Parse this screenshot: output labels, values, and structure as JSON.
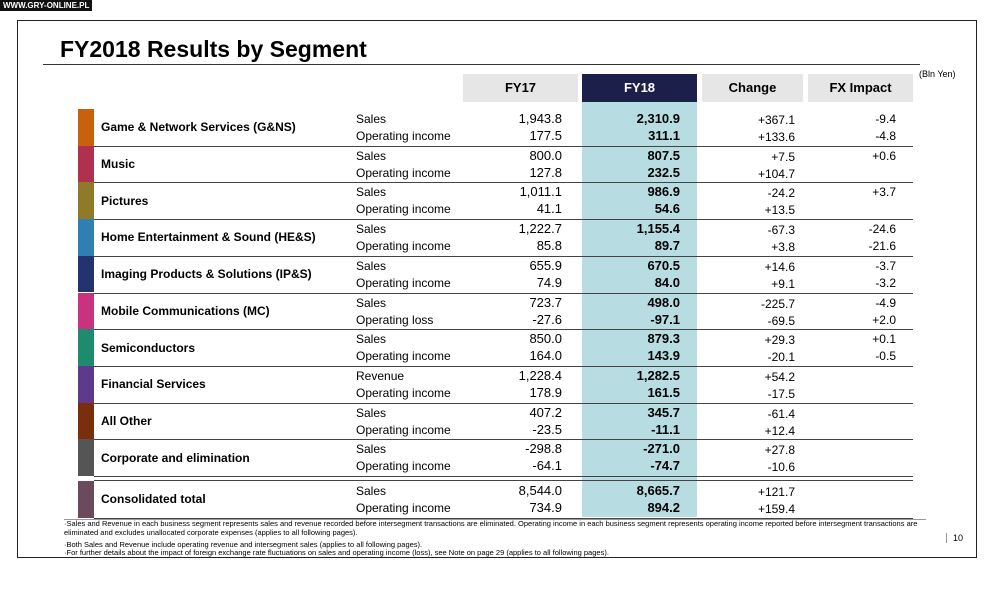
{
  "watermark": "WWW.GRY-ONLINE.PL",
  "header": {
    "title": "FY2018 Results by Segment",
    "unit": "(Bln Yen)"
  },
  "table": {
    "columns": [
      "FY17",
      "FY18",
      "Change",
      "FX Impact"
    ],
    "rows": [
      {
        "segment": "Game & Network Services (G&NS)",
        "color": "#c8600c",
        "items": [
          {
            "label": "Sales",
            "fy17": "1,943.8",
            "fy18": "2,310.9",
            "change": "+367.1",
            "fx": "-9.4"
          },
          {
            "label": "Operating income",
            "fy17": "177.5",
            "fy18": "311.1",
            "change": "+133.6",
            "fx": "-4.8"
          }
        ]
      },
      {
        "segment": "Music",
        "color": "#b03050",
        "items": [
          {
            "label": "Sales",
            "fy17": "800.0",
            "fy18": "807.5",
            "change": "+7.5",
            "fx": "+0.6"
          },
          {
            "label": "Operating income",
            "fy17": "127.8",
            "fy18": "232.5",
            "change": "+104.7"
          }
        ]
      },
      {
        "segment": "Pictures",
        "color": "#8f7a2a",
        "items": [
          {
            "label": "Sales",
            "fy17": "1,011.1",
            "fy18": "986.9",
            "change": "-24.2",
            "fx": "+3.7"
          },
          {
            "label": "Operating income",
            "fy17": "41.1",
            "fy18": "54.6",
            "change": "+13.5"
          }
        ]
      },
      {
        "segment": "Home Entertainment & Sound (HE&S)",
        "color": "#2f7fb0",
        "items": [
          {
            "label": "Sales",
            "fy17": "1,222.7",
            "fy18": "1,155.4",
            "change": "-67.3",
            "fx": "-24.6"
          },
          {
            "label": "Operating income",
            "fy17": "85.8",
            "fy18": "89.7",
            "change": "+3.8",
            "fx": "-21.6"
          }
        ]
      },
      {
        "segment": "Imaging Products & Solutions (IP&S)",
        "color": "#23336e",
        "items": [
          {
            "label": "Sales",
            "fy17": "655.9",
            "fy18": "670.5",
            "change": "+14.6",
            "fx": "-3.7"
          },
          {
            "label": "Operating income",
            "fy17": "74.9",
            "fy18": "84.0",
            "change": "+9.1",
            "fx": "-3.2"
          }
        ]
      },
      {
        "segment": "Mobile Communications (MC)",
        "color": "#c8337f",
        "items": [
          {
            "label": "Sales",
            "fy17": "723.7",
            "fy18": "498.0",
            "change": "-225.7",
            "fx": "-4.9"
          },
          {
            "label": "Operating loss",
            "fy17": "-27.6",
            "fy18": "-97.1",
            "change": "-69.5",
            "fx": "+2.0"
          }
        ]
      },
      {
        "segment": "Semiconductors",
        "color": "#1e8a6e",
        "items": [
          {
            "label": "Sales",
            "fy17": "850.0",
            "fy18": "879.3",
            "change": "+29.3",
            "fx": "+0.1"
          },
          {
            "label": "Operating income",
            "fy17": "164.0",
            "fy18": "143.9",
            "change": "-20.1",
            "fx": "-0.5"
          }
        ]
      },
      {
        "segment": "Financial Services",
        "color": "#5e3a8c",
        "items": [
          {
            "label": "Revenue",
            "fy17": "1,228.4",
            "fy18": "1,282.5",
            "change": "+54.2"
          },
          {
            "label": "Operating income",
            "fy17": "178.9",
            "fy18": "161.5",
            "change": "-17.5"
          }
        ]
      },
      {
        "segment": "All Other",
        "color": "#7a2e0e",
        "items": [
          {
            "label": "Sales",
            "fy17": "407.2",
            "fy18": "345.7",
            "change": "-61.4"
          },
          {
            "label": "Operating income",
            "fy17": "-23.5",
            "fy18": "-11.1",
            "change": "+12.4"
          }
        ]
      },
      {
        "segment": "Corporate and elimination",
        "color": "#555555",
        "items": [
          {
            "label": "Sales",
            "fy17": "-298.8",
            "fy18": "-271.0",
            "change": "+27.8"
          },
          {
            "label": "Operating income",
            "fy17": "-64.1",
            "fy18": "-74.7",
            "change": "-10.6"
          }
        ]
      },
      {
        "segment": "Consolidated total",
        "color": "#6b4a5e",
        "items": [
          {
            "label": "Sales",
            "fy17": "8,544.0",
            "fy18": "8,665.7",
            "change": "+121.7"
          },
          {
            "label": "Operating income",
            "fy17": "734.9",
            "fy18": "894.2",
            "change": "+159.4"
          }
        ]
      }
    ]
  },
  "footnotes": [
    "·Sales and Revenue in each business segment represents sales and revenue recorded before intersegment transactions are eliminated.  Operating income in each business segment represents operating income reported before intersegment transactions are eliminated and excludes unallocated corporate expenses (applies to all following pages).",
    "·Both Sales and Revenue include operating revenue and intersegment sales (applies to all following pages).",
    "·For further details about the impact of foreign exchange rate fluctuations on sales and operating income (loss), see Note on page 29 (applies to all following pages)."
  ],
  "page_number": "10"
}
